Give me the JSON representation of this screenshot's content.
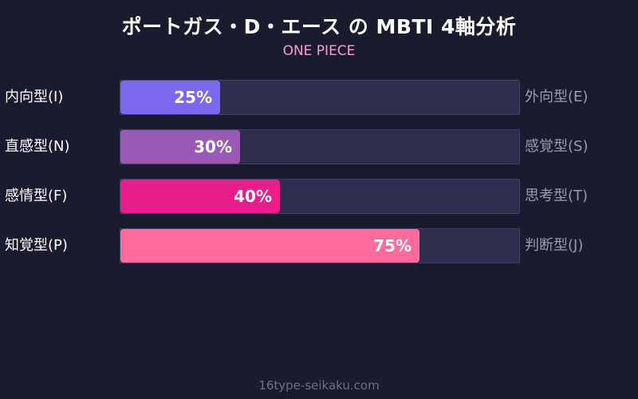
{
  "chart_data": {
    "type": "bar",
    "title": "ポートガス・D・エース の MBTI 4軸分析",
    "subtitle": "ONE PIECE",
    "xlim": [
      0,
      100
    ],
    "rows": [
      {
        "left": "内向型(I)",
        "right": "外向型(E)",
        "value": 25,
        "label": "25%",
        "color": "#7b68ee"
      },
      {
        "left": "直感型(N)",
        "right": "感覚型(S)",
        "value": 30,
        "label": "30%",
        "color": "#9b59b6"
      },
      {
        "left": "感情型(F)",
        "right": "思考型(T)",
        "value": 40,
        "label": "40%",
        "color": "#e91e8c"
      },
      {
        "left": "知覚型(P)",
        "right": "判断型(J)",
        "value": 75,
        "label": "75%",
        "color": "#ff6b9d"
      }
    ]
  },
  "footer": "16type-seikaku.com"
}
